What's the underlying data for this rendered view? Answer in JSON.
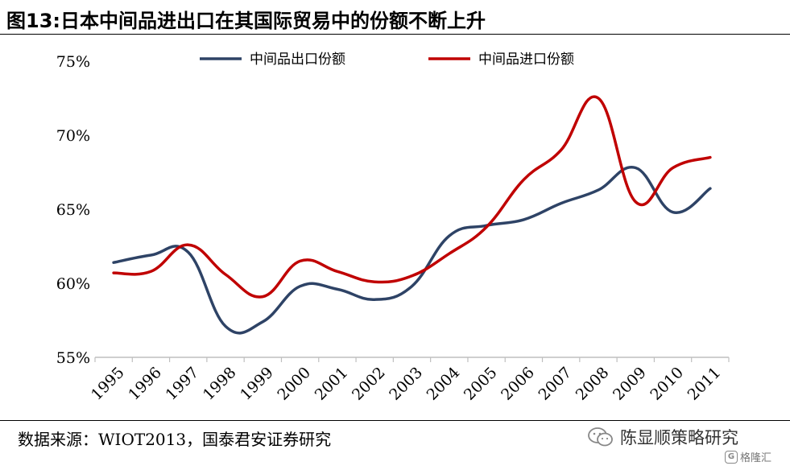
{
  "title": "图13:日本中间品进出口在其国际贸易中的份额不断上升",
  "source": "数据来源：WIOT2013，国泰君安证券研究",
  "watermark": {
    "text": "陈显顺策略研究",
    "icon": "wechat-icon"
  },
  "badge": {
    "text": "格隆汇",
    "icon_glyph": "G"
  },
  "chart_data": {
    "type": "line",
    "title": "图13:日本中间品进出口在其国际贸易中的份额不断上升",
    "xlabel": "",
    "ylabel": "",
    "x": [
      "1995",
      "1996",
      "1997",
      "1998",
      "1999",
      "2000",
      "2001",
      "2002",
      "2003",
      "2004",
      "2005",
      "2006",
      "2007",
      "2008",
      "2009",
      "2010",
      "2011"
    ],
    "ylim": [
      55,
      75
    ],
    "yticks": [
      55,
      60,
      65,
      70,
      75
    ],
    "ytick_labels": [
      "55%",
      "60%",
      "65%",
      "70%",
      "75%"
    ],
    "grid": false,
    "legend_position": "top",
    "series": [
      {
        "name": "中间品出口份额",
        "color": "#2e4366",
        "values": [
          61.4,
          61.9,
          62.1,
          57.1,
          57.4,
          59.8,
          59.6,
          58.9,
          59.8,
          63.2,
          63.9,
          64.3,
          65.4,
          66.3,
          67.8,
          64.8,
          66.4
        ]
      },
      {
        "name": "中间品进口份额",
        "color": "#c00000",
        "values": [
          60.7,
          60.8,
          62.6,
          60.6,
          59.1,
          61.5,
          60.8,
          60.1,
          60.5,
          62.0,
          63.8,
          67.0,
          69.0,
          72.5,
          65.5,
          67.8,
          68.5
        ]
      }
    ]
  }
}
